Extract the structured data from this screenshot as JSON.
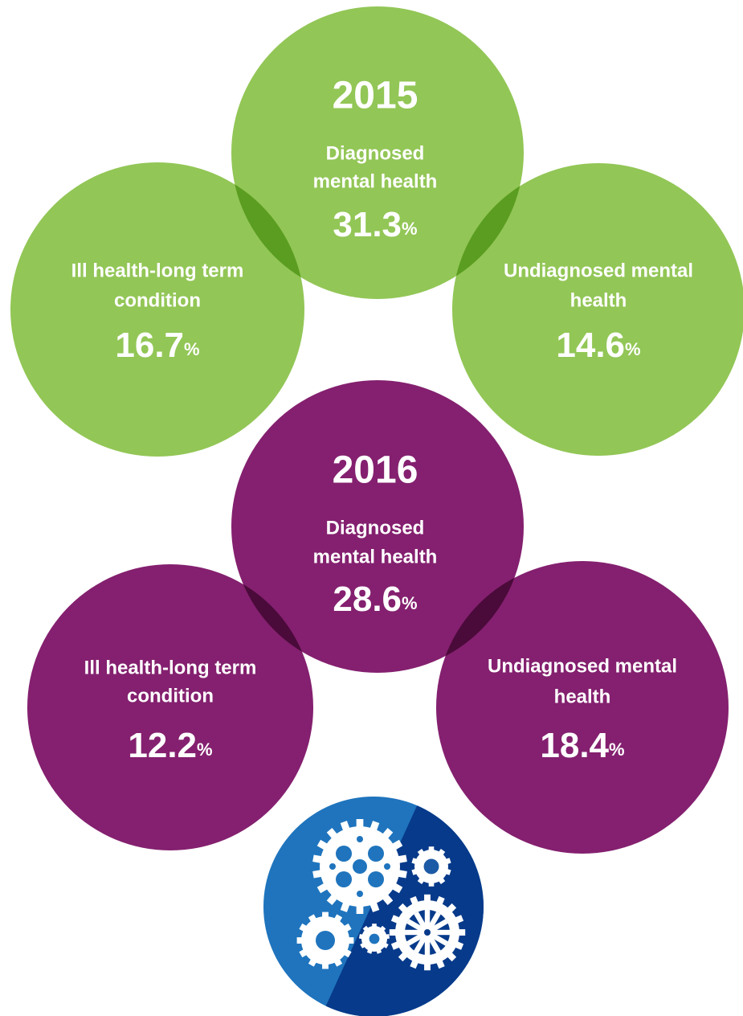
{
  "groups": [
    {
      "year": "2015",
      "color": "#92c656",
      "overlap_color": "#5a9d21",
      "circles": [
        {
          "label_lines": [
            "Diagnosed",
            "mental health"
          ],
          "value": 31.3,
          "unit": "%"
        },
        {
          "label_lines": [
            "Ill health-long term",
            "condition"
          ],
          "value": 16.7,
          "unit": "%"
        },
        {
          "label_lines": [
            "Undiagnosed mental",
            "health"
          ],
          "value": 14.6,
          "unit": "%"
        }
      ]
    },
    {
      "year": "2016",
      "color": "#84206f",
      "overlap_color": "#4a0a3a",
      "circles": [
        {
          "label_lines": [
            "Diagnosed",
            "mental health"
          ],
          "value": 28.6,
          "unit": "%"
        },
        {
          "label_lines": [
            "Ill health-long term",
            "condition"
          ],
          "value": 12.2,
          "unit": "%"
        },
        {
          "label_lines": [
            "Undiagnosed mental",
            "health"
          ],
          "value": 18.4,
          "unit": "%"
        }
      ]
    }
  ]
}
